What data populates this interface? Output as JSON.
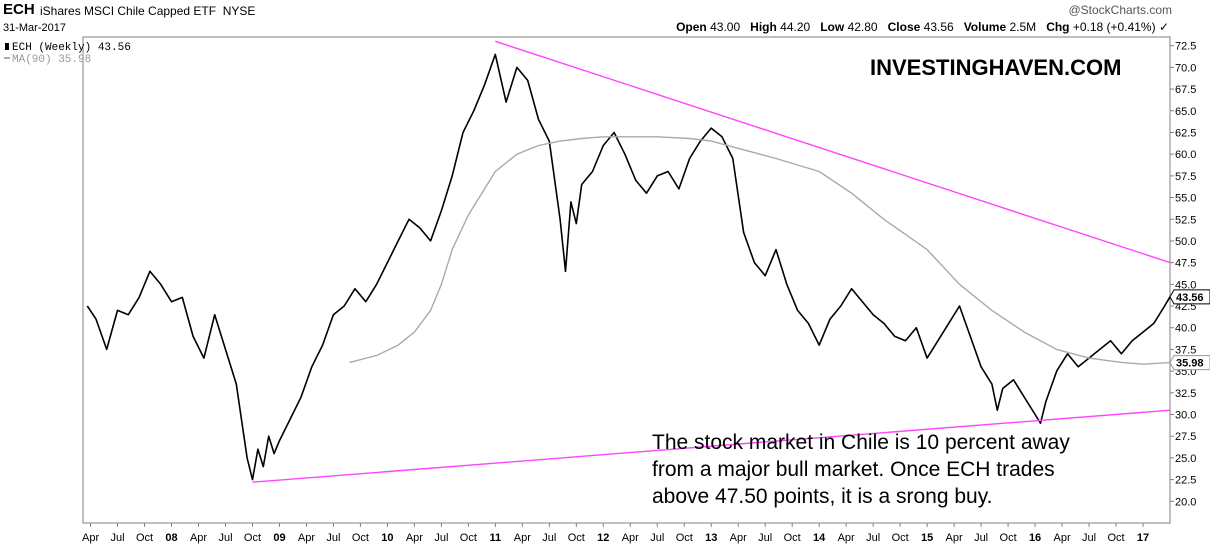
{
  "header": {
    "ticker": "ECH",
    "description": "iShares MSCI Chile Capped ETF",
    "exchange": "NYSE",
    "date": "31-Mar-2017",
    "watermark": "@StockCharts.com",
    "open_label": "Open",
    "open": "43.00",
    "high_label": "High",
    "high": "44.20",
    "low_label": "Low",
    "low": "42.80",
    "close_label": "Close",
    "close": "43.56",
    "volume_label": "Volume",
    "volume": "2.5M",
    "chg_label": "Chg",
    "chg": "+0.18 (+0.41%)",
    "chg_marker": "✓"
  },
  "chart_data": {
    "type": "line",
    "title": "ECH (Weekly)",
    "ylim": [
      17.5,
      73.5
    ],
    "y_ticks": [
      "72.5",
      "70.0",
      "67.5",
      "65.0",
      "62.5",
      "60.0",
      "57.5",
      "55.0",
      "52.5",
      "50.0",
      "47.5",
      "45.0",
      "42.5",
      "40.0",
      "37.5",
      "35.0",
      "32.5",
      "30.0",
      "27.5",
      "25.0",
      "22.5",
      "20.0"
    ],
    "xlim": [
      2007.18,
      2017.25
    ],
    "x_ticks": [
      {
        "label": "Apr",
        "x": 2007.25
      },
      {
        "label": "Jul",
        "x": 2007.5
      },
      {
        "label": "Oct",
        "x": 2007.75
      },
      {
        "label": "08",
        "x": 2008.0,
        "bold": true
      },
      {
        "label": "Apr",
        "x": 2008.25
      },
      {
        "label": "Jul",
        "x": 2008.5
      },
      {
        "label": "Oct",
        "x": 2008.75
      },
      {
        "label": "09",
        "x": 2009.0,
        "bold": true
      },
      {
        "label": "Apr",
        "x": 2009.25
      },
      {
        "label": "Jul",
        "x": 2009.5
      },
      {
        "label": "Oct",
        "x": 2009.75
      },
      {
        "label": "10",
        "x": 2010.0,
        "bold": true
      },
      {
        "label": "Apr",
        "x": 2010.25
      },
      {
        "label": "Jul",
        "x": 2010.5
      },
      {
        "label": "Oct",
        "x": 2010.75
      },
      {
        "label": "11",
        "x": 2011.0,
        "bold": true
      },
      {
        "label": "Apr",
        "x": 2011.25
      },
      {
        "label": "Jul",
        "x": 2011.5
      },
      {
        "label": "Oct",
        "x": 2011.75
      },
      {
        "label": "12",
        "x": 2012.0,
        "bold": true
      },
      {
        "label": "Apr",
        "x": 2012.25
      },
      {
        "label": "Jul",
        "x": 2012.5
      },
      {
        "label": "Oct",
        "x": 2012.75
      },
      {
        "label": "13",
        "x": 2013.0,
        "bold": true
      },
      {
        "label": "Apr",
        "x": 2013.25
      },
      {
        "label": "Jul",
        "x": 2013.5
      },
      {
        "label": "Oct",
        "x": 2013.75
      },
      {
        "label": "14",
        "x": 2014.0,
        "bold": true
      },
      {
        "label": "Apr",
        "x": 2014.25
      },
      {
        "label": "Jul",
        "x": 2014.5
      },
      {
        "label": "Oct",
        "x": 2014.75
      },
      {
        "label": "15",
        "x": 2015.0,
        "bold": true
      },
      {
        "label": "Apr",
        "x": 2015.25
      },
      {
        "label": "Jul",
        "x": 2015.5
      },
      {
        "label": "Oct",
        "x": 2015.75
      },
      {
        "label": "16",
        "x": 2016.0,
        "bold": true
      },
      {
        "label": "Apr",
        "x": 2016.25
      },
      {
        "label": "Jul",
        "x": 2016.5
      },
      {
        "label": "Oct",
        "x": 2016.75
      },
      {
        "label": "17",
        "x": 2017.0,
        "bold": true
      }
    ],
    "grid": false,
    "legend": "top-left",
    "series": [
      {
        "name": "ECH (Weekly) 43.56",
        "color": "#000000",
        "x": [
          2007.22,
          2007.3,
          2007.4,
          2007.5,
          2007.6,
          2007.7,
          2007.8,
          2007.9,
          2008.0,
          2008.1,
          2008.2,
          2008.3,
          2008.4,
          2008.5,
          2008.6,
          2008.7,
          2008.75,
          2008.8,
          2008.85,
          2008.9,
          2008.95,
          2009.0,
          2009.1,
          2009.2,
          2009.3,
          2009.4,
          2009.5,
          2009.6,
          2009.7,
          2009.8,
          2009.9,
          2010.0,
          2010.1,
          2010.2,
          2010.3,
          2010.4,
          2010.5,
          2010.6,
          2010.7,
          2010.8,
          2010.9,
          2011.0,
          2011.1,
          2011.2,
          2011.3,
          2011.4,
          2011.5,
          2011.6,
          2011.65,
          2011.7,
          2011.75,
          2011.8,
          2011.9,
          2012.0,
          2012.1,
          2012.2,
          2012.3,
          2012.4,
          2012.5,
          2012.6,
          2012.7,
          2012.8,
          2012.9,
          2013.0,
          2013.1,
          2013.2,
          2013.3,
          2013.4,
          2013.5,
          2013.6,
          2013.7,
          2013.8,
          2013.9,
          2014.0,
          2014.1,
          2014.2,
          2014.3,
          2014.4,
          2014.5,
          2014.6,
          2014.7,
          2014.8,
          2014.9,
          2015.0,
          2015.1,
          2015.2,
          2015.3,
          2015.4,
          2015.5,
          2015.6,
          2015.65,
          2015.7,
          2015.8,
          2015.9,
          2016.0,
          2016.05,
          2016.1,
          2016.2,
          2016.3,
          2016.4,
          2016.5,
          2016.6,
          2016.7,
          2016.8,
          2016.9,
          2017.0,
          2017.1,
          2017.2,
          2017.25
        ],
        "y": [
          42.5,
          41.0,
          37.5,
          42.0,
          41.5,
          43.5,
          46.5,
          45.0,
          43.0,
          43.5,
          39.0,
          36.5,
          41.5,
          37.5,
          33.5,
          25.0,
          22.5,
          26.0,
          24.0,
          27.5,
          25.5,
          27.0,
          29.5,
          32.0,
          35.5,
          38.0,
          41.5,
          42.5,
          44.5,
          43.0,
          45.0,
          47.5,
          50.0,
          52.5,
          51.5,
          50.0,
          53.5,
          57.5,
          62.5,
          65.0,
          68.0,
          71.5,
          66.0,
          70.0,
          68.5,
          64.0,
          61.5,
          52.5,
          46.5,
          54.5,
          52.0,
          56.5,
          58.0,
          61.0,
          62.5,
          60.0,
          57.0,
          55.5,
          57.5,
          58.0,
          56.0,
          59.5,
          61.5,
          63.0,
          62.0,
          59.5,
          51.0,
          47.5,
          46.0,
          49.0,
          45.0,
          42.0,
          40.5,
          38.0,
          41.0,
          42.5,
          44.5,
          43.0,
          41.5,
          40.5,
          39.0,
          38.5,
          40.0,
          36.5,
          38.5,
          40.5,
          42.5,
          39.0,
          35.5,
          33.5,
          30.5,
          33.0,
          34.0,
          32.0,
          30.0,
          29.0,
          31.5,
          35.0,
          37.0,
          35.5,
          36.5,
          37.5,
          38.5,
          37.0,
          38.5,
          39.5,
          40.5,
          42.5,
          43.56
        ]
      },
      {
        "name": "MA(90) 35.98",
        "color": "#aaaaaa",
        "x": [
          2009.65,
          2009.9,
          2010.1,
          2010.25,
          2010.4,
          2010.5,
          2010.6,
          2010.75,
          2010.9,
          2011.0,
          2011.2,
          2011.4,
          2011.6,
          2011.8,
          2012.0,
          2012.2,
          2012.5,
          2012.8,
          2013.0,
          2013.3,
          2013.6,
          2014.0,
          2014.3,
          2014.6,
          2015.0,
          2015.3,
          2015.6,
          2015.9,
          2016.2,
          2016.5,
          2016.8,
          2017.0,
          2017.25
        ],
        "y": [
          36.0,
          36.8,
          38.0,
          39.5,
          42.0,
          45.0,
          49.0,
          53.0,
          56.0,
          58.0,
          60.0,
          61.0,
          61.5,
          61.8,
          62.0,
          62.0,
          62.0,
          61.8,
          61.5,
          60.5,
          59.5,
          58.0,
          55.5,
          52.5,
          49.0,
          45.0,
          42.0,
          39.5,
          37.5,
          36.5,
          36.0,
          35.8,
          35.98
        ]
      },
      {
        "name": "",
        "color": "#ff44ff",
        "x": [
          2011.0,
          2017.25
        ],
        "y": [
          73.0,
          47.5
        ]
      },
      {
        "name": "",
        "color": "#ff44ff",
        "x": [
          2008.75,
          2017.25
        ],
        "y": [
          22.2,
          30.5
        ]
      }
    ],
    "current_price_label": "43.56",
    "ma_price_label": "35.98",
    "brand": "INVESTINGHAVEN.COM",
    "annotation": [
      "The stock market in Chile is 10 percent away",
      "from a major bull market. Once ECH trades",
      "above 47.50 points, it is a srong buy."
    ]
  }
}
